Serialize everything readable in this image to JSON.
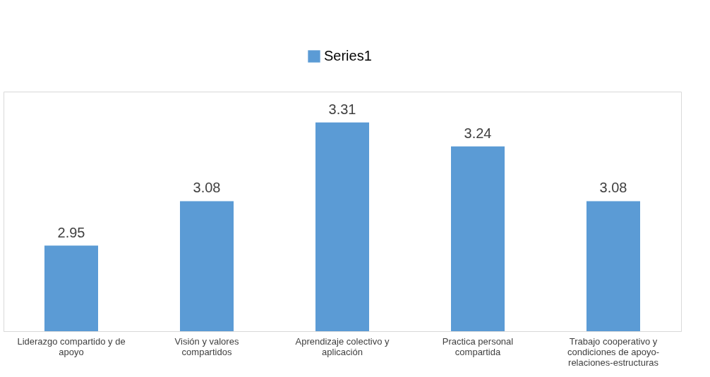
{
  "chart_data": {
    "type": "bar",
    "categories": [
      "Liderazgo compartido y de apoyo",
      "Visión y valores compartidos",
      "Aprendizaje colectivo y aplicación",
      "Practica personal compartida",
      "Trabajo cooperativo y condiciones de apoyo-relaciones-estructuras"
    ],
    "series": [
      {
        "name": "Series1",
        "color": "#5b9bd5",
        "values": [
          2.95,
          3.08,
          3.31,
          3.24,
          3.08
        ]
      }
    ],
    "ylim": [
      2.7,
      3.4
    ],
    "tick_labels": "x",
    "data_labels": true,
    "legend": "top",
    "grid": false
  }
}
